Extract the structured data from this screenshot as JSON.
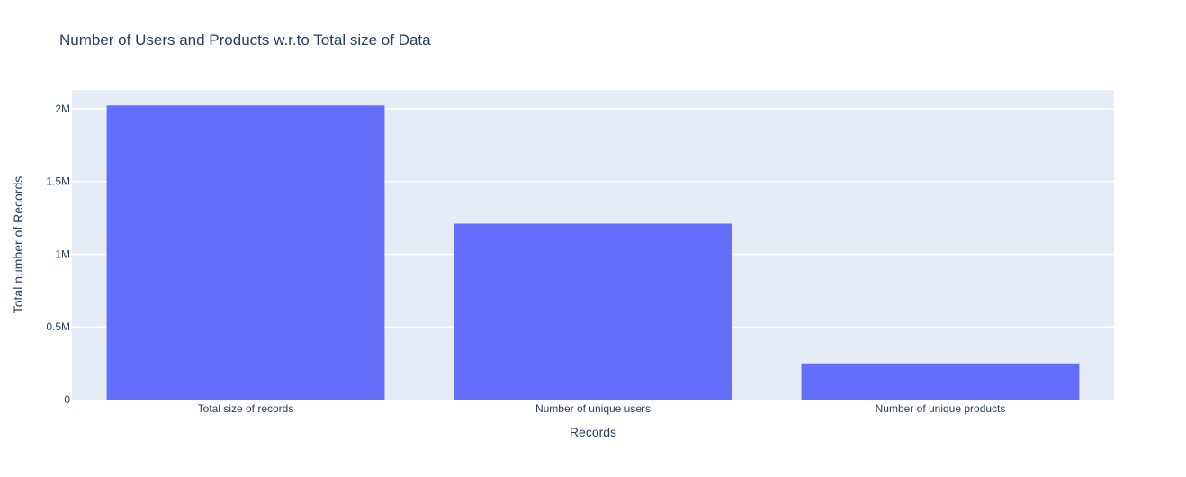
{
  "chart_data": {
    "type": "bar",
    "title": "Number of Users and Products w.r.to Total size of Data",
    "xlabel": "Records",
    "ylabel": "Total number of Records",
    "categories": [
      "Total size of records",
      "Number of unique users",
      "Number of unique products"
    ],
    "values": [
      2023070,
      1210271,
      249274
    ],
    "ylim": [
      0,
      2130000
    ],
    "yticks": [
      {
        "value": 0,
        "label": "0"
      },
      {
        "value": 500000,
        "label": "0.5M"
      },
      {
        "value": 1000000,
        "label": "1M"
      },
      {
        "value": 1500000,
        "label": "1.5M"
      },
      {
        "value": 2000000,
        "label": "2M"
      }
    ],
    "grid": true,
    "legend": "none",
    "colors": {
      "bar": "#636efa",
      "plot_background": "#e5ecf6",
      "grid": "#ffffff",
      "text": "#2a3f5f"
    }
  }
}
